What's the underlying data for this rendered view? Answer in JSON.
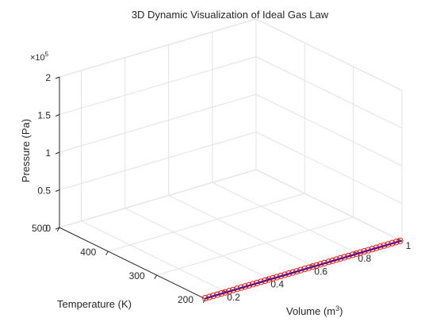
{
  "chart_data": {
    "type": "line",
    "title": "3D Dynamic Visualization of Ideal Gas Law",
    "xlabel": "Volume (m",
    "xlabel_sup": "3",
    "xlabel_end": ")",
    "ylabel": "Temperature (K)",
    "zlabel": "Pressure (Pa)",
    "z_exponent_prefix": "×10",
    "z_exponent": "5",
    "xlim": [
      0.1,
      1.0
    ],
    "ylim": [
      200,
      500
    ],
    "zlim": [
      0,
      200000
    ],
    "x_ticks": [
      0.2,
      0.4,
      0.6,
      0.8,
      1
    ],
    "x_tick_labels": [
      "0.2",
      "0.4",
      "0.6",
      "0.8",
      "1"
    ],
    "y_ticks": [
      200,
      300,
      400,
      500
    ],
    "y_tick_labels": [
      "200",
      "300",
      "400",
      "500"
    ],
    "z_ticks": [
      0,
      50000,
      100000,
      150000,
      200000
    ],
    "z_tick_labels": [
      "0",
      "0.5",
      "1",
      "1.5",
      "2"
    ],
    "grid": true,
    "series": [
      {
        "line_color": "#0000ff",
        "marker_color": "#ff0000",
        "marker": "circle",
        "x": [
          0.1,
          0.118,
          0.136,
          0.155,
          0.173,
          0.191,
          0.209,
          0.227,
          0.245,
          0.264,
          0.282,
          0.3,
          0.318,
          0.336,
          0.355,
          0.373,
          0.391,
          0.409,
          0.427,
          0.445,
          0.464,
          0.482,
          0.5,
          0.518,
          0.536,
          0.555,
          0.573,
          0.591,
          0.609,
          0.627,
          0.645,
          0.664,
          0.682,
          0.7,
          0.718,
          0.736,
          0.755,
          0.773,
          0.791,
          0.809,
          0.827,
          0.845,
          0.864,
          0.882,
          0.9,
          0.918,
          0.936,
          0.955,
          0.973,
          0.991
        ],
        "y": [
          200,
          200,
          200,
          200,
          200,
          200,
          200,
          200,
          200,
          200,
          200,
          200,
          200,
          200,
          200,
          200,
          200,
          200,
          200,
          200,
          200,
          200,
          200,
          200,
          200,
          200,
          200,
          200,
          200,
          200,
          200,
          200,
          200,
          200,
          200,
          200,
          200,
          200,
          200,
          200,
          200,
          200,
          200,
          200,
          200,
          200,
          200,
          200,
          200,
          200
        ],
        "z": [
          1000,
          1000,
          1000,
          1000,
          1000,
          1000,
          1000,
          1000,
          1000,
          1000,
          1000,
          1000,
          1000,
          1000,
          1000,
          1000,
          1000,
          1000,
          1000,
          1000,
          1000,
          1000,
          1000,
          1000,
          1000,
          1000,
          1000,
          1000,
          1000,
          1000,
          1000,
          1000,
          1000,
          1000,
          1000,
          1000,
          1000,
          1000,
          1000,
          1000,
          1000,
          1000,
          1000,
          1000,
          1000,
          1000,
          1000,
          1000,
          1000,
          1000
        ]
      }
    ]
  }
}
